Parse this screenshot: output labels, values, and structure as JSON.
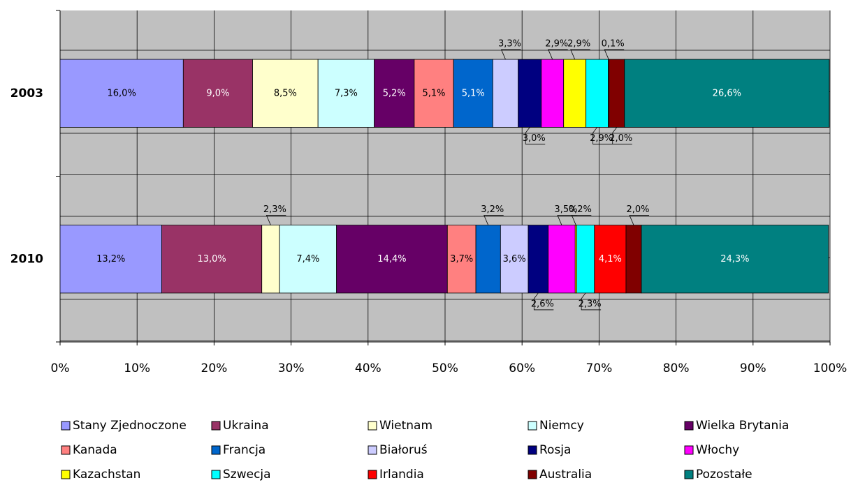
{
  "chart_data": {
    "type": "stacked_bar_h",
    "categories": [
      "2003",
      "2010"
    ],
    "series": [
      {
        "name": "Stany Zjednoczone",
        "color": "#9999ff",
        "values": [
          16.0,
          13.2
        ],
        "value_labels": [
          "16,0%",
          "13,2%"
        ]
      },
      {
        "name": "Ukraina",
        "color": "#993366",
        "values": [
          9.0,
          13.0
        ],
        "value_labels": [
          "9,0%",
          "13,0%"
        ]
      },
      {
        "name": "Wietnam",
        "color": "#ffffcc",
        "values": [
          8.5,
          2.3
        ],
        "value_labels": [
          "8,5%",
          "2,3%"
        ]
      },
      {
        "name": "Niemcy",
        "color": "#ccffff",
        "values": [
          7.3,
          7.4
        ],
        "value_labels": [
          "7,3%",
          "7,4%"
        ]
      },
      {
        "name": "Wielka Brytania",
        "color": "#660066",
        "values": [
          5.2,
          14.4
        ],
        "value_labels": [
          "5,2%",
          "14,4%"
        ]
      },
      {
        "name": "Kanada",
        "color": "#ff8080",
        "values": [
          5.1,
          3.7
        ],
        "value_labels": [
          "5,1%",
          "3,7%"
        ]
      },
      {
        "name": "Francja",
        "color": "#0066cc",
        "values": [
          5.1,
          3.2
        ],
        "value_labels": [
          "5,1%",
          "3,2%"
        ]
      },
      {
        "name": "Białoruś",
        "color": "#ccccff",
        "values": [
          3.3,
          3.6
        ],
        "value_labels": [
          "3,3%",
          "3,6%"
        ]
      },
      {
        "name": "Rosja",
        "color": "#000080",
        "values": [
          3.0,
          2.6
        ],
        "value_labels": [
          "3,0%",
          "2,6%"
        ]
      },
      {
        "name": "Włochy",
        "color": "#ff00ff",
        "values": [
          2.9,
          3.5
        ],
        "value_labels": [
          "2,9%",
          "3,5%"
        ]
      },
      {
        "name": "Kazachstan",
        "color": "#ffff00",
        "values": [
          2.9,
          0.2
        ],
        "value_labels": [
          "2,9%",
          "0,2%"
        ]
      },
      {
        "name": "Szwecja",
        "color": "#00ffff",
        "values": [
          2.9,
          2.3
        ],
        "value_labels": [
          "2,9%",
          "2,3%"
        ]
      },
      {
        "name": "Irlandia",
        "color": "#ff0000",
        "values": [
          0.1,
          4.1
        ],
        "value_labels": [
          "0,1%",
          "4,1%"
        ]
      },
      {
        "name": "Australia",
        "color": "#800000",
        "values": [
          2.0,
          2.0
        ],
        "value_labels": [
          "2,0%",
          "2,0%"
        ]
      },
      {
        "name": "Pozostałe",
        "color": "#008080",
        "values": [
          26.6,
          24.3
        ],
        "value_labels": [
          "26,6%",
          "24,3%"
        ]
      }
    ],
    "xlim": [
      0,
      100
    ],
    "xticks": [
      {
        "value": 0,
        "label": "0%"
      },
      {
        "value": 10,
        "label": "10%"
      },
      {
        "value": 20,
        "label": "20%"
      },
      {
        "value": 30,
        "label": "30%"
      },
      {
        "value": 40,
        "label": "40%"
      },
      {
        "value": 50,
        "label": "50%"
      },
      {
        "value": 60,
        "label": "60%"
      },
      {
        "value": 70,
        "label": "70%"
      },
      {
        "value": 80,
        "label": "80%"
      },
      {
        "value": 90,
        "label": "90%"
      },
      {
        "value": 100,
        "label": "100%"
      }
    ],
    "grid": true,
    "legend": "bottom"
  }
}
